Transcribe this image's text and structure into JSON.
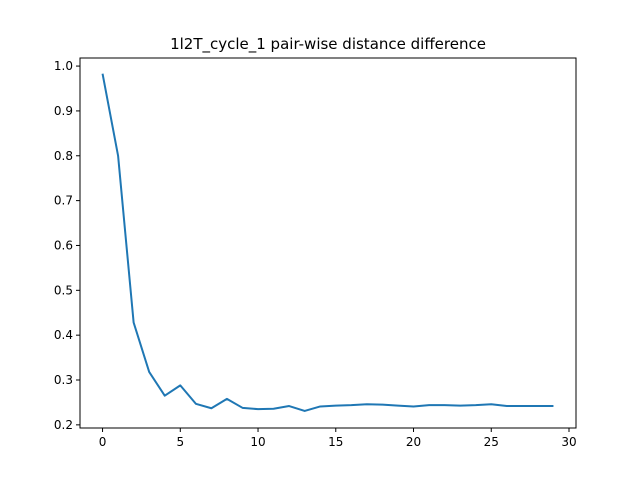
{
  "chart_data": {
    "type": "line",
    "title": "1l2T_cycle_1 pair-wise distance difference",
    "xlabel": "",
    "ylabel": "",
    "xlim": [
      -1.45,
      30.45
    ],
    "ylim": [
      0.193,
      1.018
    ],
    "x_ticks": [
      0,
      5,
      10,
      15,
      20,
      25,
      30
    ],
    "y_ticks": [
      0.2,
      0.3,
      0.4,
      0.5,
      0.6,
      0.7,
      0.8,
      0.9,
      1.0
    ],
    "x_tick_labels": [
      "0",
      "5",
      "10",
      "15",
      "20",
      "25",
      "30"
    ],
    "y_tick_labels": [
      "0.2",
      "0.3",
      "0.4",
      "0.5",
      "0.6",
      "0.7",
      "0.8",
      "0.9",
      "1.0"
    ],
    "grid": false,
    "series": [
      {
        "color": "#1f77b4",
        "x": [
          0,
          1,
          2,
          3,
          4,
          5,
          6,
          7,
          8,
          9,
          10,
          11,
          12,
          13,
          14,
          15,
          16,
          17,
          18,
          19,
          20,
          21,
          22,
          23,
          24,
          25,
          26,
          27,
          28,
          29
        ],
        "values": [
          0.983,
          0.8,
          0.428,
          0.318,
          0.265,
          0.288,
          0.247,
          0.237,
          0.258,
          0.238,
          0.235,
          0.236,
          0.242,
          0.231,
          0.241,
          0.243,
          0.244,
          0.246,
          0.245,
          0.243,
          0.241,
          0.244,
          0.244,
          0.243,
          0.244,
          0.246,
          0.242,
          0.242,
          0.242,
          0.242
        ]
      }
    ]
  }
}
